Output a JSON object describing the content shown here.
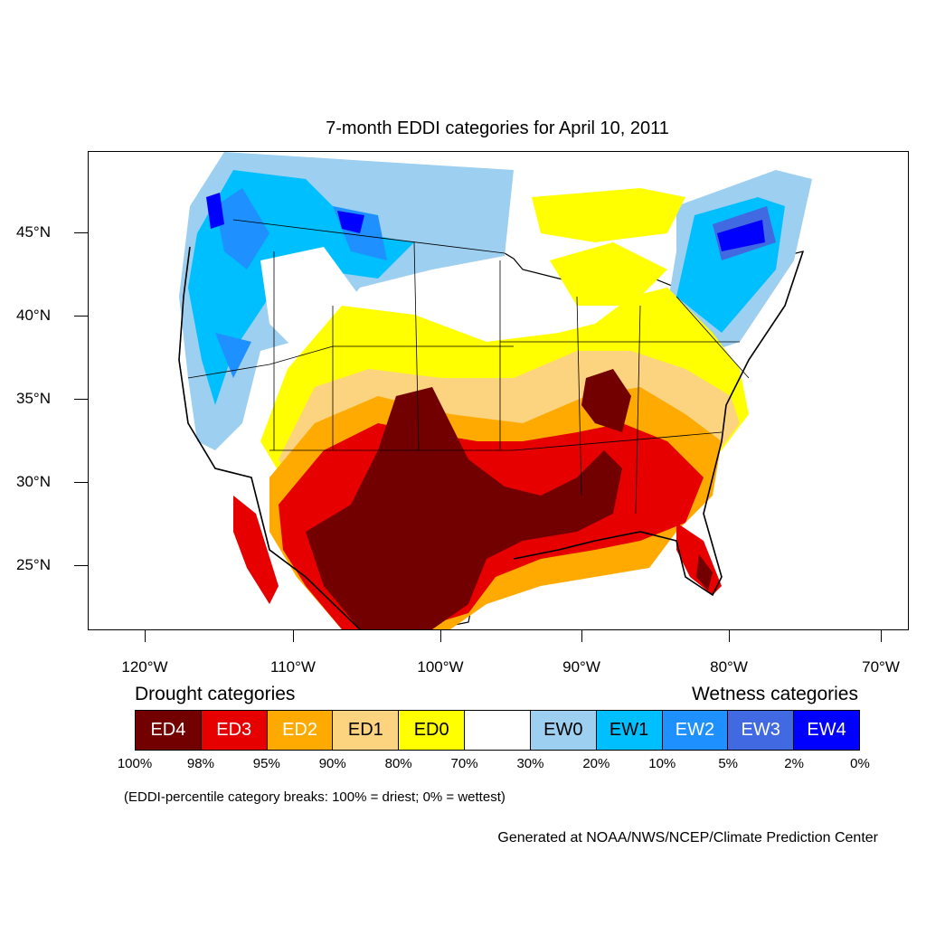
{
  "title": "7-month EDDI categories for April 10, 2011",
  "lat_labels": [
    "45°N",
    "40°N",
    "35°N",
    "30°N",
    "25°N"
  ],
  "lon_labels": [
    "120°W",
    "110°W",
    "100°W",
    "90°W",
    "80°W",
    "70°W"
  ],
  "legend": {
    "drought_title": "Drought categories",
    "wetness_title": "Wetness categories",
    "categories": [
      {
        "label": "ED4",
        "color": "#730000",
        "text_color": "#ffffff"
      },
      {
        "label": "ED3",
        "color": "#e60000",
        "text_color": "#ffffff"
      },
      {
        "label": "ED2",
        "color": "#ffaa00",
        "text_color": "#ffffff"
      },
      {
        "label": "ED1",
        "color": "#fcd37f",
        "text_color": "#000000"
      },
      {
        "label": "ED0",
        "color": "#ffff00",
        "text_color": "#000000"
      },
      {
        "label": "",
        "color": "#ffffff",
        "text_color": "#000000"
      },
      {
        "label": "EW0",
        "color": "#9ccff0",
        "text_color": "#000000"
      },
      {
        "label": "EW1",
        "color": "#00bfff",
        "text_color": "#000000"
      },
      {
        "label": "EW2",
        "color": "#1e90ff",
        "text_color": "#ffffff"
      },
      {
        "label": "EW3",
        "color": "#4169e1",
        "text_color": "#ffffff"
      },
      {
        "label": "EW4",
        "color": "#0000ff",
        "text_color": "#ffffff"
      }
    ],
    "percent_breaks": [
      "100%",
      "98%",
      "95%",
      "90%",
      "80%",
      "70%",
      "30%",
      "20%",
      "10%",
      "5%",
      "2%",
      "0%"
    ]
  },
  "breaks_note": "(EDDI-percentile category breaks: 100% = driest; 0% = wettest)",
  "credit": "Generated at NOAA/NWS/NCEP/Climate Prediction Center"
}
